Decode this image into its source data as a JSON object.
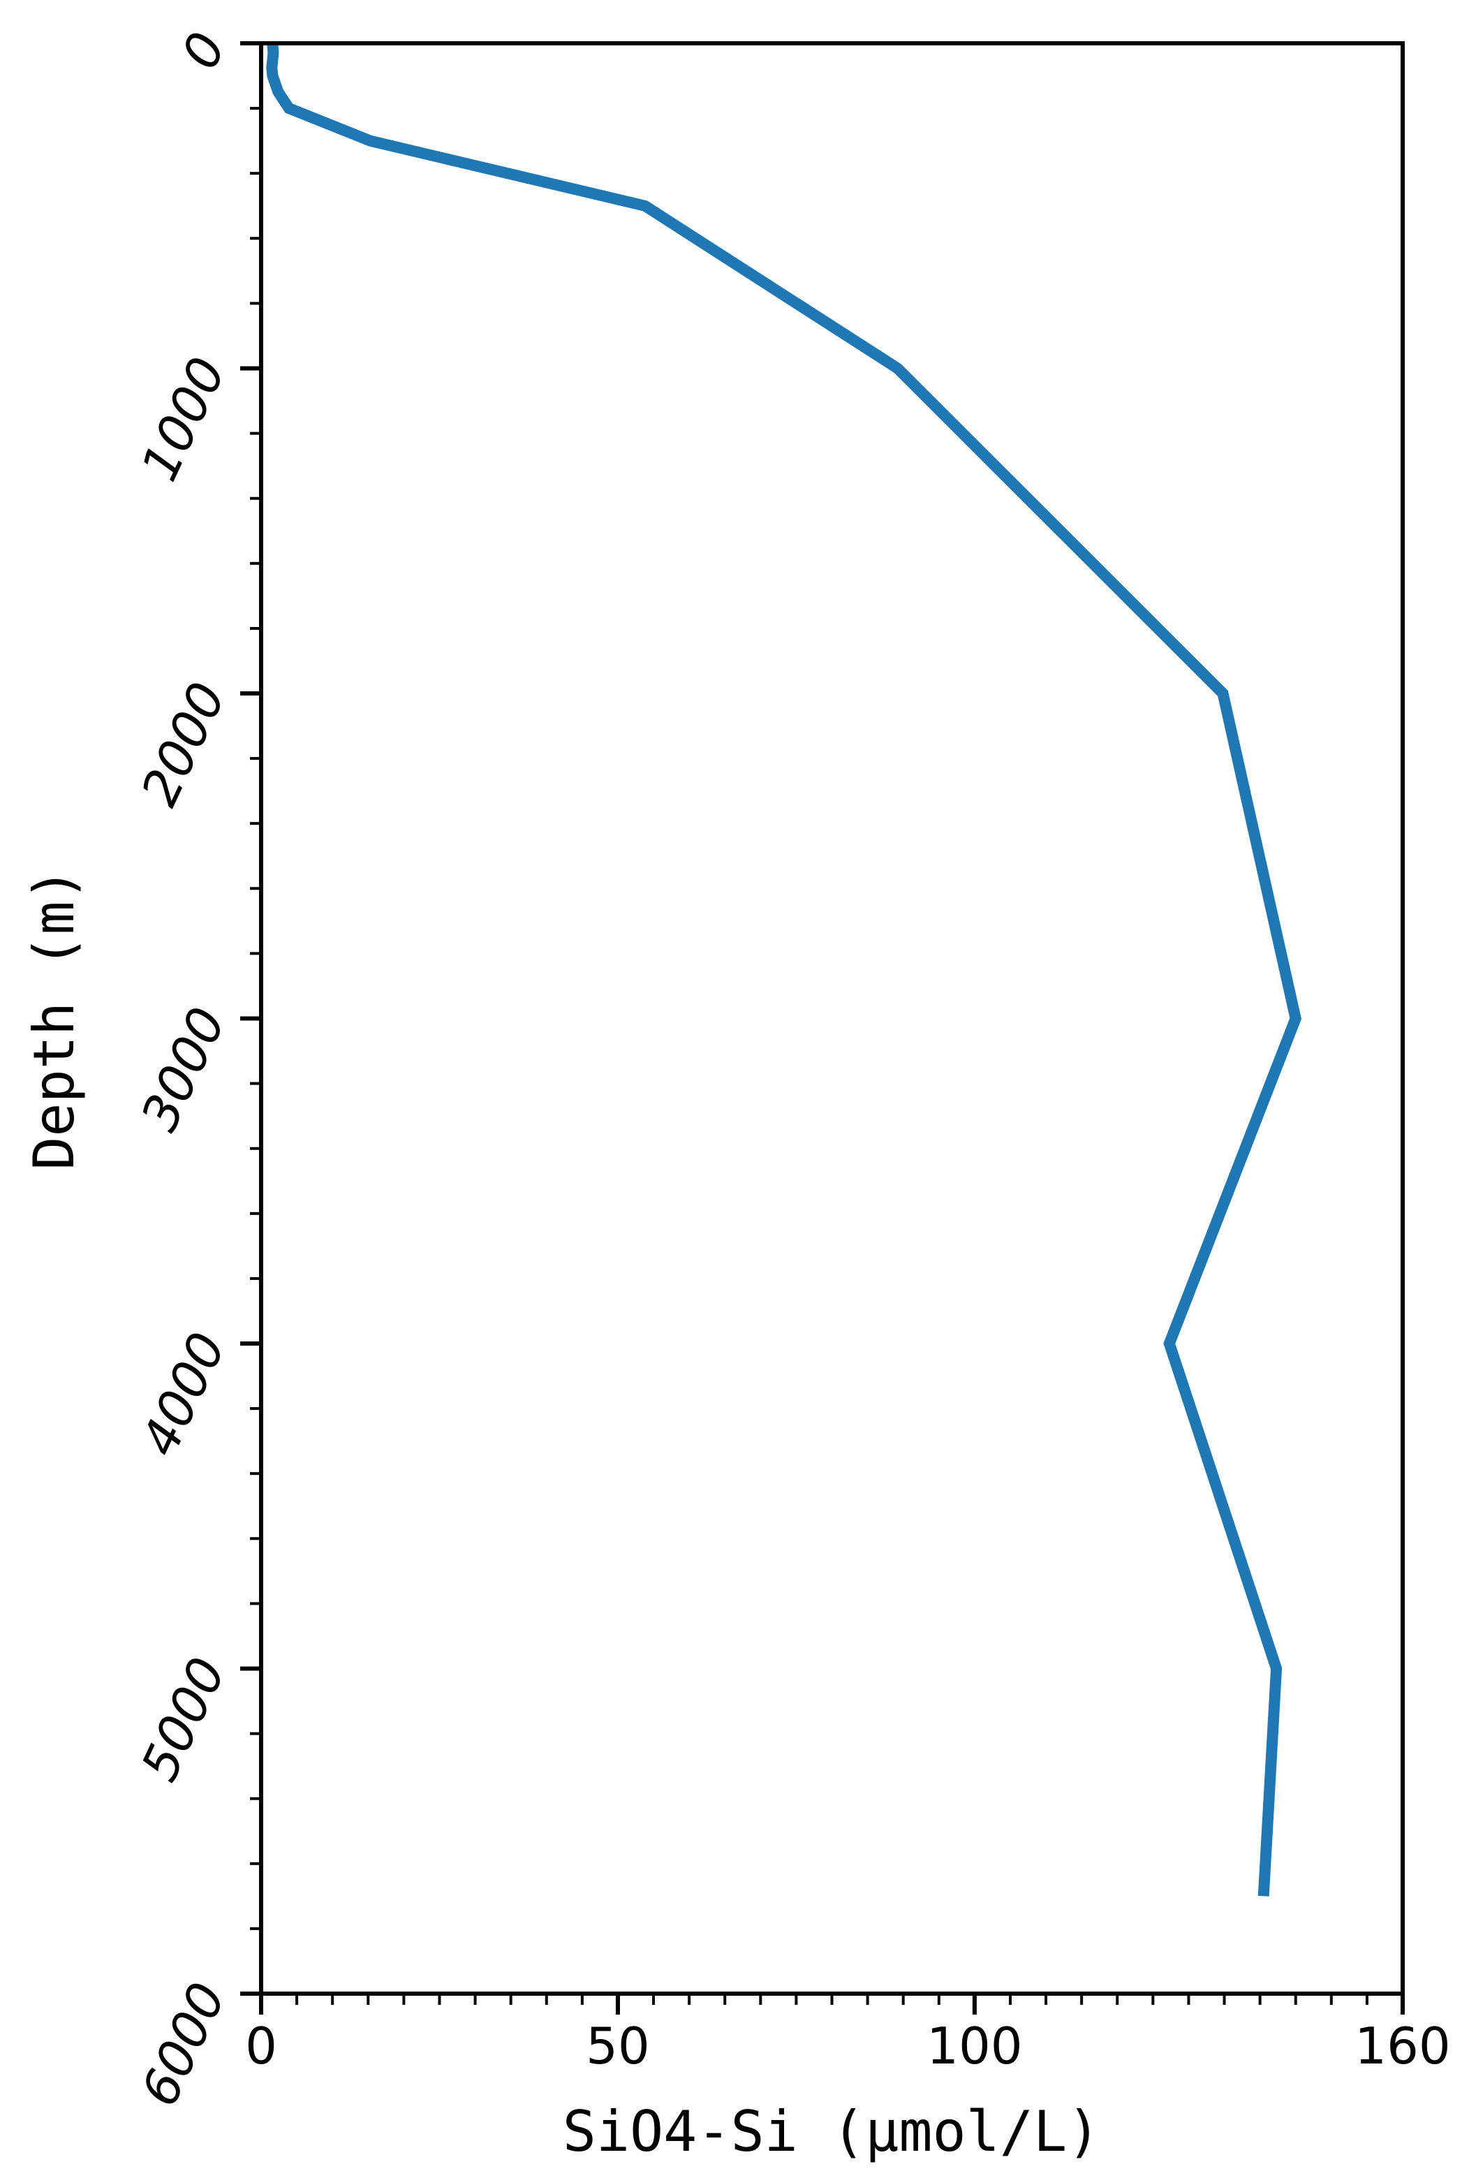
{
  "chart_data": {
    "type": "line",
    "title": "",
    "xlabel": "SiO4-Si (μmol/L)",
    "ylabel": "Depth (m)",
    "xlim": [
      0,
      160
    ],
    "ylim": [
      6000,
      0
    ],
    "y_inverted": true,
    "x_ticks": [
      0,
      50,
      100,
      160
    ],
    "x_tick_labels": [
      "0",
      "50",
      "100",
      "160"
    ],
    "x_minor_step": 5,
    "y_ticks": [
      0,
      1000,
      2000,
      3000,
      4000,
      5000,
      6000
    ],
    "y_tick_labels": [
      "0",
      "1000",
      "2000",
      "3000",
      "4000",
      "5000",
      "6000"
    ],
    "y_minor_step": 200,
    "grid": false,
    "legend": "none",
    "series": [
      {
        "color": "#1f77b4",
        "points": [
          {
            "x": 1.6,
            "y": 0
          },
          {
            "x": 1.7,
            "y": 30
          },
          {
            "x": 1.5,
            "y": 75
          },
          {
            "x": 1.6,
            "y": 100
          },
          {
            "x": 2.0,
            "y": 125
          },
          {
            "x": 2.4,
            "y": 150
          },
          {
            "x": 3.9,
            "y": 200
          },
          {
            "x": 15.3,
            "y": 300
          },
          {
            "x": 53.8,
            "y": 500
          },
          {
            "x": 89.2,
            "y": 1000
          },
          {
            "x": 134.8,
            "y": 2000
          },
          {
            "x": 145.0,
            "y": 3000
          },
          {
            "x": 127.3,
            "y": 4000
          },
          {
            "x": 142.3,
            "y": 5000
          },
          {
            "x": 140.5,
            "y": 5700
          }
        ]
      }
    ]
  }
}
